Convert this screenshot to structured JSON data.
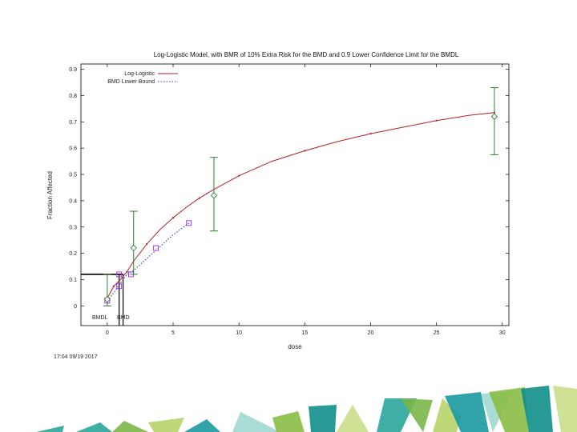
{
  "chart_data": {
    "type": "line",
    "title": "Log-Logistic Model, with BMR of 10% Extra Risk for the BMD and 0.9 Lower Confidence Limit for the BMDL",
    "xlabel": "dose",
    "ylabel": "Fraction Affected",
    "xlim": [
      -2,
      30.5
    ],
    "ylim": [
      -0.075,
      0.92
    ],
    "x_ticks": [
      "0",
      "5",
      "10",
      "15",
      "20",
      "25",
      "30"
    ],
    "y_ticks": [
      "0",
      "0.1",
      "0.2",
      "0.3",
      "0.4",
      "0.5",
      "0.6",
      "0.7",
      "0.8",
      "0.9"
    ],
    "grid": false,
    "legend_position": "top-left",
    "legend": [
      "Log-Logistic",
      "BMD Lower Bound"
    ],
    "colors": {
      "model": "#b22222",
      "lower_bound": "#2244aa",
      "data": "#2e7d32",
      "bmd_markers": "#a020f0",
      "bmd_lines": "#000000"
    },
    "series": [
      {
        "name": "Log-Logistic",
        "style": "solid",
        "x": [
          0,
          0.5,
          1.0,
          1.5,
          2.0,
          3.0,
          4.0,
          5.0,
          6.0,
          7.0,
          8.0,
          10.0,
          12.5,
          15.0,
          17.5,
          20.0,
          22.5,
          25.0,
          27.5,
          29.4
        ],
        "y": [
          0.03,
          0.075,
          0.1,
          0.13,
          0.17,
          0.235,
          0.29,
          0.335,
          0.375,
          0.41,
          0.44,
          0.495,
          0.55,
          0.59,
          0.625,
          0.655,
          0.68,
          0.705,
          0.725,
          0.735
        ]
      },
      {
        "name": "BMD Lower Bound",
        "style": "dotted",
        "x": [
          0,
          0.5,
          0.9,
          1.5,
          2.0,
          3.0,
          4.0,
          5.0,
          6.2
        ],
        "y": [
          0.02,
          0.05,
          0.08,
          0.12,
          0.135,
          0.18,
          0.225,
          0.27,
          0.315
        ]
      }
    ],
    "observed": [
      {
        "x": 0,
        "y": 0.025,
        "lower": 0.0,
        "upper": 0.12
      },
      {
        "x": 2.0,
        "y": 0.22,
        "lower": 0.12,
        "upper": 0.36
      },
      {
        "x": 8.1,
        "y": 0.42,
        "lower": 0.285,
        "upper": 0.565
      },
      {
        "x": 29.4,
        "y": 0.72,
        "lower": 0.575,
        "upper": 0.83
      }
    ],
    "lower_bound_markers": [
      {
        "x": 0,
        "y": 0.02
      },
      {
        "x": 0.9,
        "y": 0.075
      },
      {
        "x": 0.9,
        "y": 0.12
      },
      {
        "x": 1.8,
        "y": 0.12
      },
      {
        "x": 3.7,
        "y": 0.22
      },
      {
        "x": 6.2,
        "y": 0.315
      }
    ],
    "bmr_level": 0.12,
    "bmd": 1.2,
    "bmdl": 0.9,
    "bmd_label": "BMD",
    "bmdl_label": "BMDL"
  },
  "timestamp": "17:04 09/19 2017",
  "decoration": {
    "colors": [
      "#2aa59a",
      "#7ab648",
      "#b7d36a",
      "#1a9aa0",
      "#9ed8d0",
      "#8bbd45",
      "#0f8f8a",
      "#c9de8a"
    ]
  }
}
